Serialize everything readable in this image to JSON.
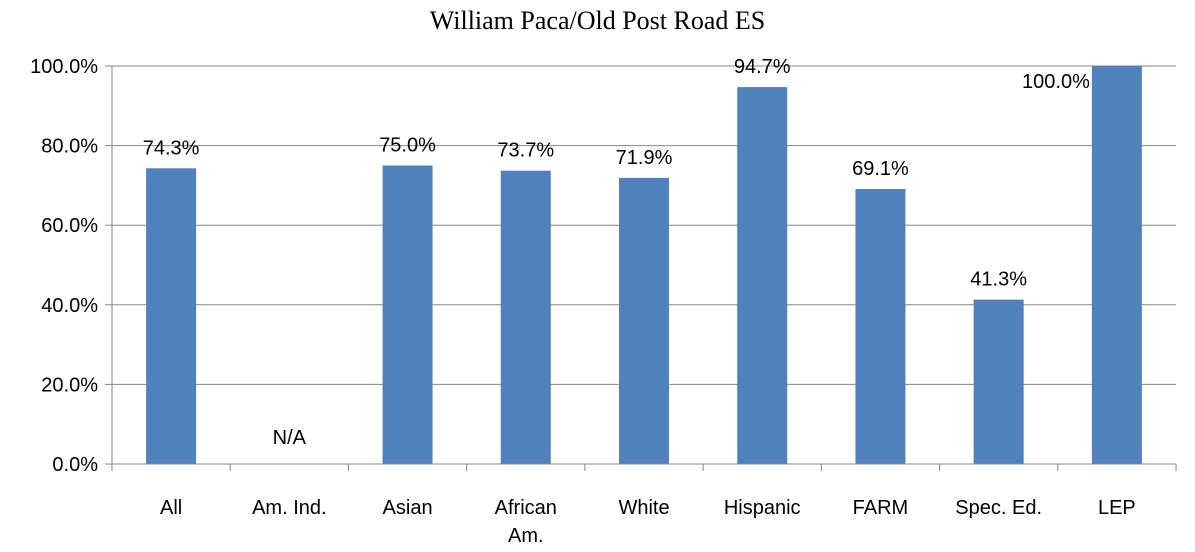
{
  "chart_data": {
    "type": "bar",
    "title": "William Paca/Old Post Road ES",
    "categories": [
      "All",
      "Am. Ind.",
      "Asian",
      "African Am.",
      "White",
      "Hispanic",
      "FARM",
      "Spec. Ed.",
      "LEP"
    ],
    "category_label_lines": [
      [
        "All"
      ],
      [
        "Am. Ind."
      ],
      [
        "Asian"
      ],
      [
        "African",
        "Am."
      ],
      [
        "White"
      ],
      [
        "Hispanic"
      ],
      [
        "FARM"
      ],
      [
        "Spec. Ed."
      ],
      [
        "LEP"
      ]
    ],
    "values": [
      74.3,
      null,
      75.0,
      73.7,
      71.9,
      94.7,
      69.1,
      41.3,
      100.0
    ],
    "data_labels": [
      "74.3%",
      "N/A",
      "75.0%",
      "73.7%",
      "71.9%",
      "94.7%",
      "69.1%",
      "41.3%",
      "100.0%"
    ],
    "ylim": [
      0,
      100
    ],
    "y_ticks": [
      0,
      20,
      40,
      60,
      80,
      100
    ],
    "y_tick_labels": [
      "0.0%",
      "20.0%",
      "40.0%",
      "60.0%",
      "80.0%",
      "100.0%"
    ],
    "xlabel": "",
    "ylabel": "",
    "bar_color": "#4F81BD",
    "grid": "horizontal major",
    "grid_color": "#868686",
    "legend": "none"
  }
}
